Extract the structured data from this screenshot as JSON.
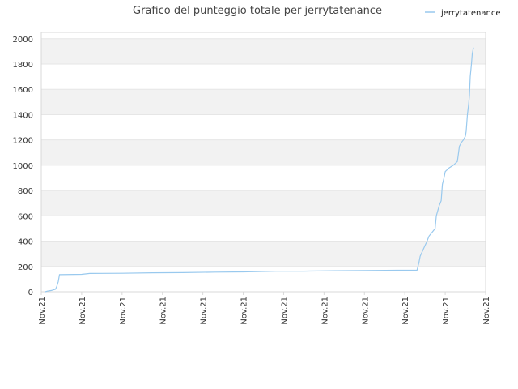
{
  "chart_data": {
    "type": "line",
    "title": "Grafico del punteggio totale per jerrytatenance",
    "xlabel": "",
    "ylabel": "",
    "ylim": [
      0,
      2050
    ],
    "yticks": [
      0,
      200,
      400,
      600,
      800,
      1000,
      1200,
      1400,
      1600,
      1800,
      2000
    ],
    "xtick_labels": [
      "Nov.21",
      "Nov.21",
      "Nov.21",
      "Nov.21",
      "Nov.21",
      "Nov.21",
      "Nov.21",
      "Nov.21",
      "Nov.21",
      "Nov.21",
      "Nov.21",
      "Nov.21"
    ],
    "grid": true,
    "legend_position": "top-right",
    "colors": {
      "line": "#99c9ee",
      "band": "#f2f2f2",
      "grid": "#e6e6e6",
      "axis": "#d8d8d8"
    },
    "series": [
      {
        "name": "jerrytatenance",
        "points": [
          [
            0.1,
            0
          ],
          [
            0.15,
            5
          ],
          [
            0.25,
            10
          ],
          [
            0.35,
            20
          ],
          [
            0.38,
            40
          ],
          [
            0.42,
            80
          ],
          [
            0.45,
            135
          ],
          [
            1.0,
            138
          ],
          [
            1.2,
            145
          ],
          [
            2.0,
            146
          ],
          [
            2.75,
            150
          ],
          [
            3.5,
            151
          ],
          [
            4.3,
            155
          ],
          [
            5.0,
            157
          ],
          [
            5.8,
            162
          ],
          [
            6.5,
            163
          ],
          [
            7.3,
            166
          ],
          [
            8.0,
            167
          ],
          [
            8.8,
            170
          ],
          [
            9.3,
            170
          ],
          [
            9.35,
            230
          ],
          [
            9.38,
            280
          ],
          [
            9.45,
            330
          ],
          [
            9.55,
            400
          ],
          [
            9.6,
            440
          ],
          [
            9.7,
            480
          ],
          [
            9.75,
            500
          ],
          [
            9.78,
            600
          ],
          [
            9.85,
            680
          ],
          [
            9.9,
            720
          ],
          [
            9.93,
            850
          ],
          [
            9.97,
            900
          ],
          [
            10.0,
            950
          ],
          [
            10.1,
            980
          ],
          [
            10.2,
            1000
          ],
          [
            10.3,
            1030
          ],
          [
            10.35,
            1150
          ],
          [
            10.4,
            1180
          ],
          [
            10.45,
            1200
          ],
          [
            10.5,
            1230
          ],
          [
            10.52,
            1270
          ],
          [
            10.55,
            1400
          ],
          [
            10.58,
            1480
          ],
          [
            10.6,
            1550
          ],
          [
            10.62,
            1700
          ],
          [
            10.65,
            1800
          ],
          [
            10.67,
            1880
          ],
          [
            10.7,
            1930
          ]
        ]
      }
    ]
  }
}
